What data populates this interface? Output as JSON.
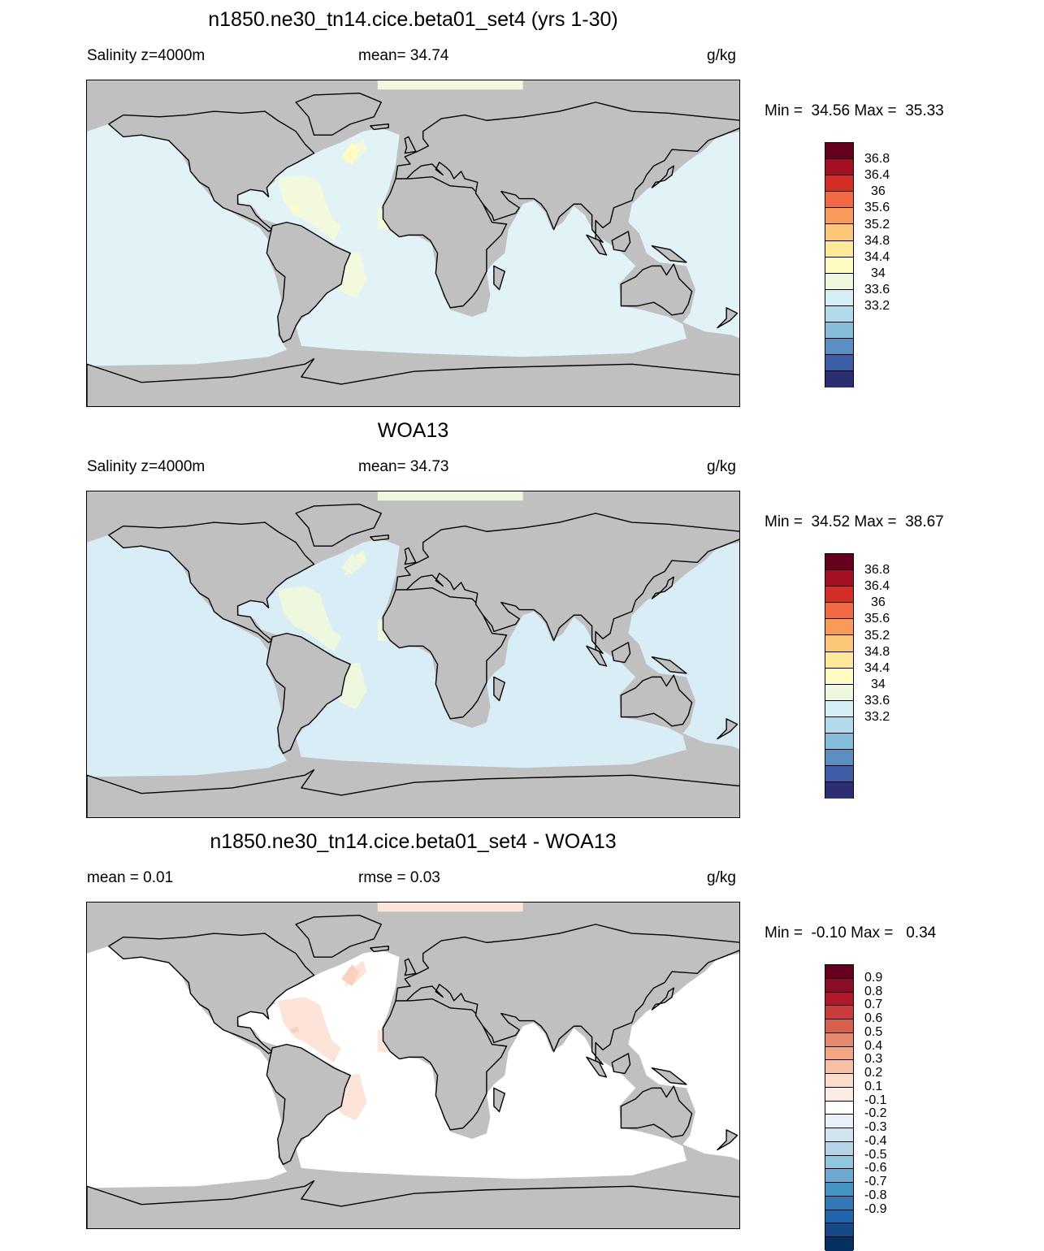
{
  "colors": {
    "land": "#c0c0c0",
    "coast": "#000000"
  },
  "panels": [
    {
      "title": "n1850.ne30_tn14.cice.beta01_set4 (yrs 1-30)",
      "left_label": "Salinity z=4000m",
      "mid_label": "mean=  34.74",
      "units": "g/kg",
      "minmax": "Min =  34.56 Max =  35.33",
      "ocean_fill": "#e2f3f8",
      "accent_fill": "#f3f9dc",
      "accent2_fill": "#fefcc0",
      "colorbar": {
        "colors": [
          "#67001f",
          "#a50f24",
          "#d42d26",
          "#f16a43",
          "#fa9a58",
          "#fdc779",
          "#fee99a",
          "#fefcc0",
          "#eef8df",
          "#d6eef5",
          "#b1dbea",
          "#87bcda",
          "#5b8fc2",
          "#3c5ea7",
          "#2c2e73"
        ],
        "labels": [
          "36.8",
          "36.4",
          "36",
          "35.6",
          "35.2",
          "34.8",
          "34.4",
          "34",
          "33.6",
          "33.2"
        ]
      }
    },
    {
      "title": "WOA13",
      "left_label": "Salinity z=4000m",
      "mid_label": "mean=  34.73",
      "units": "g/kg",
      "minmax": "Min =  34.52 Max =  38.67",
      "ocean_fill": "#d8edf5",
      "accent_fill": "#eef8df",
      "accent2_fill": "#eef8df",
      "colorbar": {
        "colors": [
          "#67001f",
          "#a50f24",
          "#d42d26",
          "#f16a43",
          "#fa9a58",
          "#fdc779",
          "#fee99a",
          "#fefcc0",
          "#eef8df",
          "#d6eef5",
          "#b1dbea",
          "#87bcda",
          "#5b8fc2",
          "#3c5ea7",
          "#2c2e73"
        ],
        "labels": [
          "36.8",
          "36.4",
          "36",
          "35.6",
          "35.2",
          "34.8",
          "34.4",
          "34",
          "33.6",
          "33.2"
        ]
      }
    },
    {
      "title": "n1850.ne30_tn14.cice.beta01_set4 - WOA13",
      "left_label": "mean =   0.01",
      "mid_label": "rmse =   0.03",
      "units": "g/kg",
      "minmax": "Min =  -0.10 Max =   0.34",
      "ocean_fill": "#ffffff",
      "accent_fill": "#fde4d8",
      "accent2_fill": "#fbd1bd",
      "colorbar": {
        "colors": [
          "#67001f",
          "#8c0d25",
          "#b2182b",
          "#c83c3d",
          "#d6604d",
          "#e58a6f",
          "#f4a582",
          "#f7c0a4",
          "#fbdbc9",
          "#fcebe2",
          "#ffffff",
          "#e7f1f7",
          "#d1e5f0",
          "#b5d4e7",
          "#92c5de",
          "#6ea9cf",
          "#4393c3",
          "#3279b5",
          "#2166ac",
          "#164a86",
          "#053061"
        ],
        "labels": [
          "0.9",
          "0.8",
          "0.7",
          "0.6",
          "0.5",
          "0.4",
          "0.3",
          "0.2",
          "0.1",
          "-0.1",
          "-0.2",
          "-0.3",
          "-0.4",
          "-0.5",
          "-0.6",
          "-0.7",
          "-0.8",
          "-0.9"
        ]
      }
    }
  ]
}
